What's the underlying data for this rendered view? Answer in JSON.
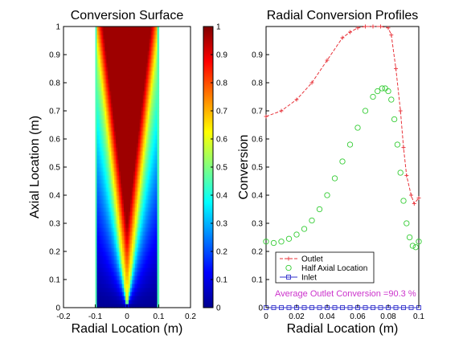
{
  "chart_data": [
    {
      "type": "heatmap",
      "title": "Conversion Surface",
      "xlabel": "Radial Location (m)",
      "ylabel": "Axial Location (m)",
      "xlim": [
        -0.2,
        0.2
      ],
      "ylim": [
        0,
        1
      ],
      "data_extent": {
        "x": [
          -0.1,
          0.1
        ],
        "y": [
          0,
          1
        ]
      },
      "x_ticks": [
        "-0.2",
        "-0.1",
        "0",
        "0.1",
        "0.2"
      ],
      "y_ticks": [
        "0",
        "0.1",
        "0.2",
        "0.3",
        "0.4",
        "0.5",
        "0.6",
        "0.7",
        "0.8",
        "0.9",
        "1"
      ],
      "colormap": "jet",
      "color_range": [
        0,
        1
      ],
      "colorbar_ticks": [
        "0",
        "0.1",
        "0.2",
        "0.3",
        "0.4",
        "0.5",
        "0.6",
        "0.7",
        "0.8",
        "0.9",
        "1"
      ],
      "colorbar_colors": [
        "#00008f",
        "#0000ff",
        "#0080ff",
        "#00ffff",
        "#80ff80",
        "#ffff00",
        "#ff8000",
        "#ff0000",
        "#800000"
      ],
      "wall_value": 0.45,
      "grid": false
    },
    {
      "type": "line",
      "title": "Radial Conversion Profiles",
      "xlabel": "Radial Location (m)",
      "ylabel": "Conversion",
      "xlim": [
        0,
        0.1
      ],
      "ylim": [
        0,
        1
      ],
      "x_ticks": [
        "0",
        "0.02",
        "0.04",
        "0.06",
        "0.08",
        "0.1"
      ],
      "y_ticks": [
        "0",
        "0.1",
        "0.2",
        "0.3",
        "0.4",
        "0.5",
        "0.6",
        "0.7",
        "0.8",
        "0.9"
      ],
      "grid": false,
      "legend_position": "bottom-left",
      "annotation": "Average Outlet Conversion =90.3 %",
      "series": [
        {
          "name": "Outlet",
          "color": "#e8333a",
          "marker": "plus",
          "line": "dashed",
          "x": [
            0,
            0.01,
            0.02,
            0.03,
            0.04,
            0.05,
            0.055,
            0.06,
            0.065,
            0.07,
            0.075,
            0.08,
            0.082,
            0.085,
            0.088,
            0.09,
            0.092,
            0.095,
            0.097,
            0.1
          ],
          "y": [
            0.68,
            0.7,
            0.74,
            0.8,
            0.88,
            0.96,
            0.98,
            0.995,
            1.0,
            1.0,
            1.0,
            0.995,
            0.97,
            0.85,
            0.7,
            0.57,
            0.47,
            0.4,
            0.37,
            0.39
          ]
        },
        {
          "name": "Half Axial Location",
          "color": "#33cc33",
          "marker": "circle",
          "line": "none",
          "x": [
            0,
            0.005,
            0.01,
            0.015,
            0.02,
            0.025,
            0.03,
            0.035,
            0.04,
            0.045,
            0.05,
            0.055,
            0.06,
            0.065,
            0.07,
            0.073,
            0.076,
            0.078,
            0.08,
            0.082,
            0.084,
            0.086,
            0.088,
            0.09,
            0.092,
            0.094,
            0.096,
            0.098,
            0.1
          ],
          "y": [
            0.235,
            0.23,
            0.235,
            0.245,
            0.26,
            0.28,
            0.31,
            0.35,
            0.4,
            0.46,
            0.52,
            0.58,
            0.64,
            0.7,
            0.75,
            0.77,
            0.78,
            0.78,
            0.77,
            0.74,
            0.67,
            0.58,
            0.48,
            0.38,
            0.3,
            0.25,
            0.22,
            0.215,
            0.235
          ]
        },
        {
          "name": "Inlet",
          "color": "#3333cc",
          "marker": "square",
          "line": "solid",
          "x": [
            0,
            0.005,
            0.01,
            0.015,
            0.02,
            0.025,
            0.03,
            0.035,
            0.04,
            0.045,
            0.05,
            0.055,
            0.06,
            0.065,
            0.07,
            0.075,
            0.08,
            0.085,
            0.09,
            0.095,
            0.1
          ],
          "y": [
            0,
            0,
            0,
            0,
            0,
            0,
            0,
            0,
            0,
            0,
            0,
            0,
            0,
            0,
            0,
            0,
            0,
            0,
            0,
            0,
            0
          ]
        }
      ]
    }
  ]
}
